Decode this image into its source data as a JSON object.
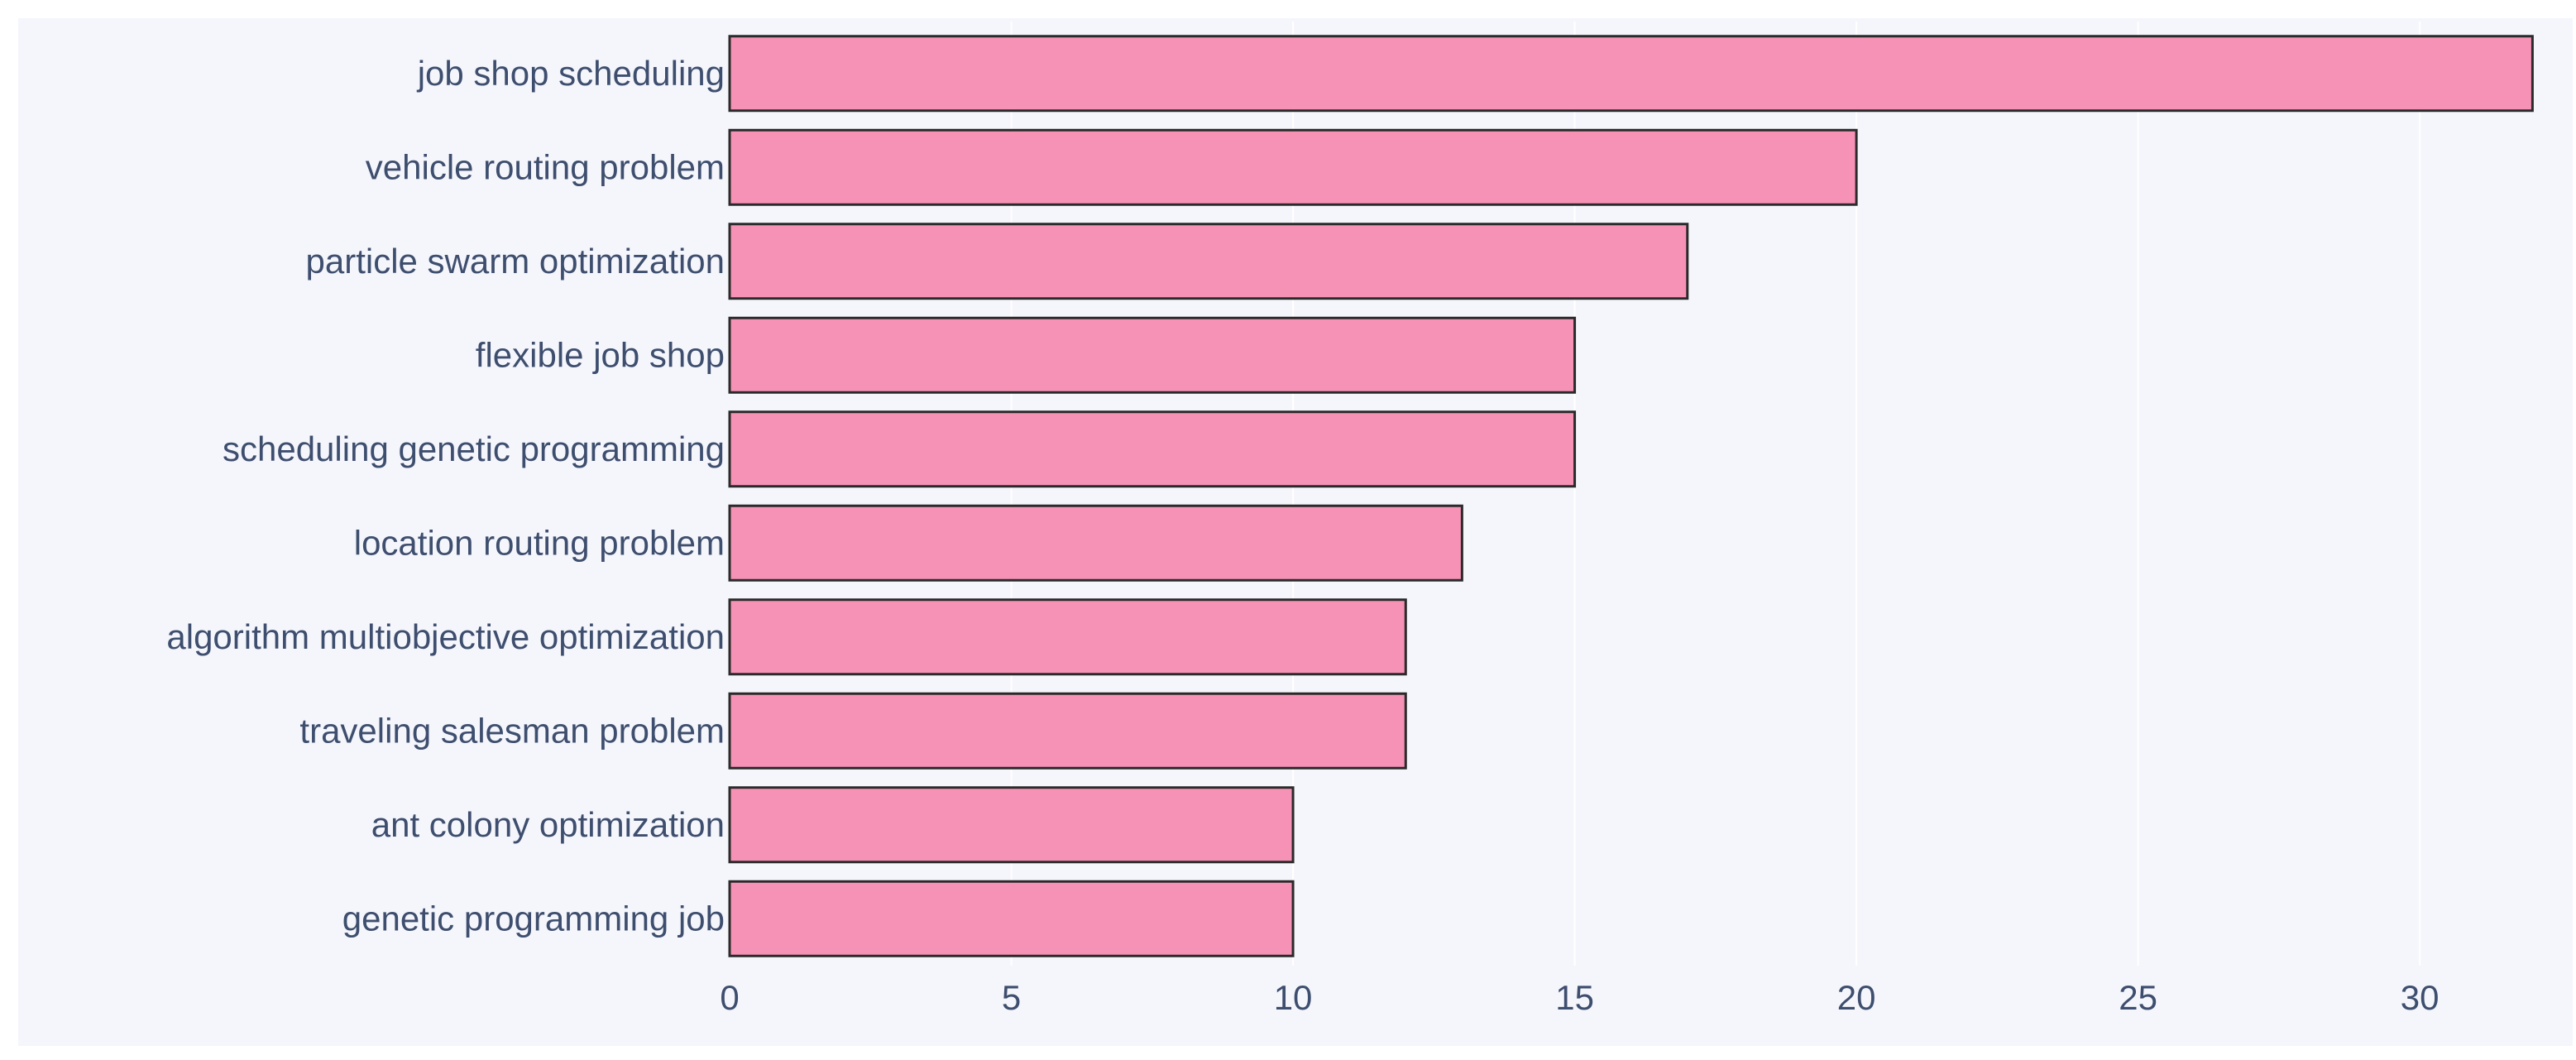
{
  "chart_data": {
    "type": "bar",
    "orientation": "horizontal",
    "categories": [
      "job shop scheduling",
      "vehicle routing problem",
      "particle swarm optimization",
      "flexible job shop",
      "scheduling genetic programming",
      "location routing problem",
      "algorithm multiobjective optimization",
      "traveling salesman problem",
      "ant colony optimization",
      "genetic programming job"
    ],
    "values": [
      32,
      20,
      17,
      15,
      15,
      13,
      12,
      12,
      10,
      10
    ],
    "title": "",
    "xlabel": "",
    "ylabel": "",
    "xlim": [
      0,
      32.2
    ],
    "x_ticks": [
      0,
      5,
      10,
      15,
      20,
      25,
      30
    ],
    "grid": "vertical",
    "legend": "none"
  },
  "colors": {
    "plot_background": "#f5f6fc",
    "bar_fill": "#f792b7",
    "bar_outline": "#2a2a2a",
    "grid_line": "#ffffff",
    "tick_text": "#3e4e6e"
  }
}
